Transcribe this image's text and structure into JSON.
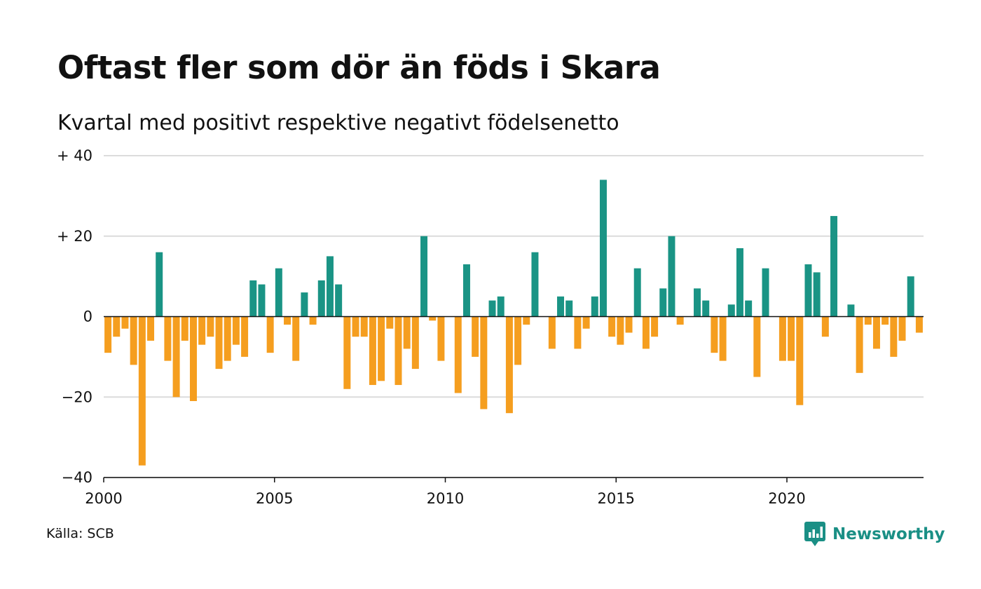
{
  "header": {
    "title": "Oftast fler som dör än föds i Skara",
    "subtitle": "Kvartal med positivt respektive negativt födelsenetto"
  },
  "footer": {
    "source": "Källa: SCB",
    "brand": "Newsworthy"
  },
  "colors": {
    "positive": "#1a9485",
    "negative": "#f59e1f",
    "grid": "#dcdcdc",
    "zero_line": "#111111",
    "brand": "#1a8f85"
  },
  "chart_data": {
    "type": "bar",
    "title": "Oftast fler som dör än föds i Skara",
    "subtitle": "Kvartal med positivt respektive negativt födelsenetto",
    "xlabel": "",
    "ylabel": "",
    "ylim": [
      -40,
      40
    ],
    "yticks": [
      {
        "value": 40,
        "label": "+ 40"
      },
      {
        "value": 20,
        "label": "+ 20"
      },
      {
        "value": 0,
        "label": "0"
      },
      {
        "value": -20,
        "label": "−20"
      },
      {
        "value": -40,
        "label": "−40"
      }
    ],
    "xticks": [
      {
        "year": 2000,
        "label": "2000"
      },
      {
        "year": 2005,
        "label": "2005"
      },
      {
        "year": 2010,
        "label": "2010"
      },
      {
        "year": 2015,
        "label": "2015"
      },
      {
        "year": 2020,
        "label": "2020"
      }
    ],
    "x_start_year": 2000,
    "grid": true,
    "legend": "none",
    "series": [
      {
        "values": [
          -9,
          -5,
          -3,
          -12,
          -37,
          -6,
          16,
          -11,
          -20,
          -6,
          -21,
          -7,
          -5,
          -13,
          -11,
          -7,
          -10,
          9,
          8,
          -9,
          12,
          -2,
          -11,
          6,
          -2,
          9,
          15,
          8,
          -18,
          -5,
          -5,
          -17,
          -16,
          -3,
          -17,
          -8,
          -13,
          20,
          -1,
          -11,
          0,
          -19,
          13,
          -10,
          -23,
          4,
          5,
          -24,
          -12,
          -2,
          16,
          0,
          -8,
          5,
          4,
          -8,
          -3,
          5,
          34,
          -5,
          -7,
          -4,
          12,
          -8,
          -5,
          7,
          20,
          -2,
          0,
          7,
          4,
          -9,
          -11,
          3,
          17,
          4,
          -15,
          12,
          0,
          -11,
          -11,
          -22,
          13,
          11,
          -5,
          25,
          0,
          3,
          -14,
          -2,
          -8,
          -2,
          -10,
          -6,
          10,
          -4
        ]
      }
    ]
  }
}
